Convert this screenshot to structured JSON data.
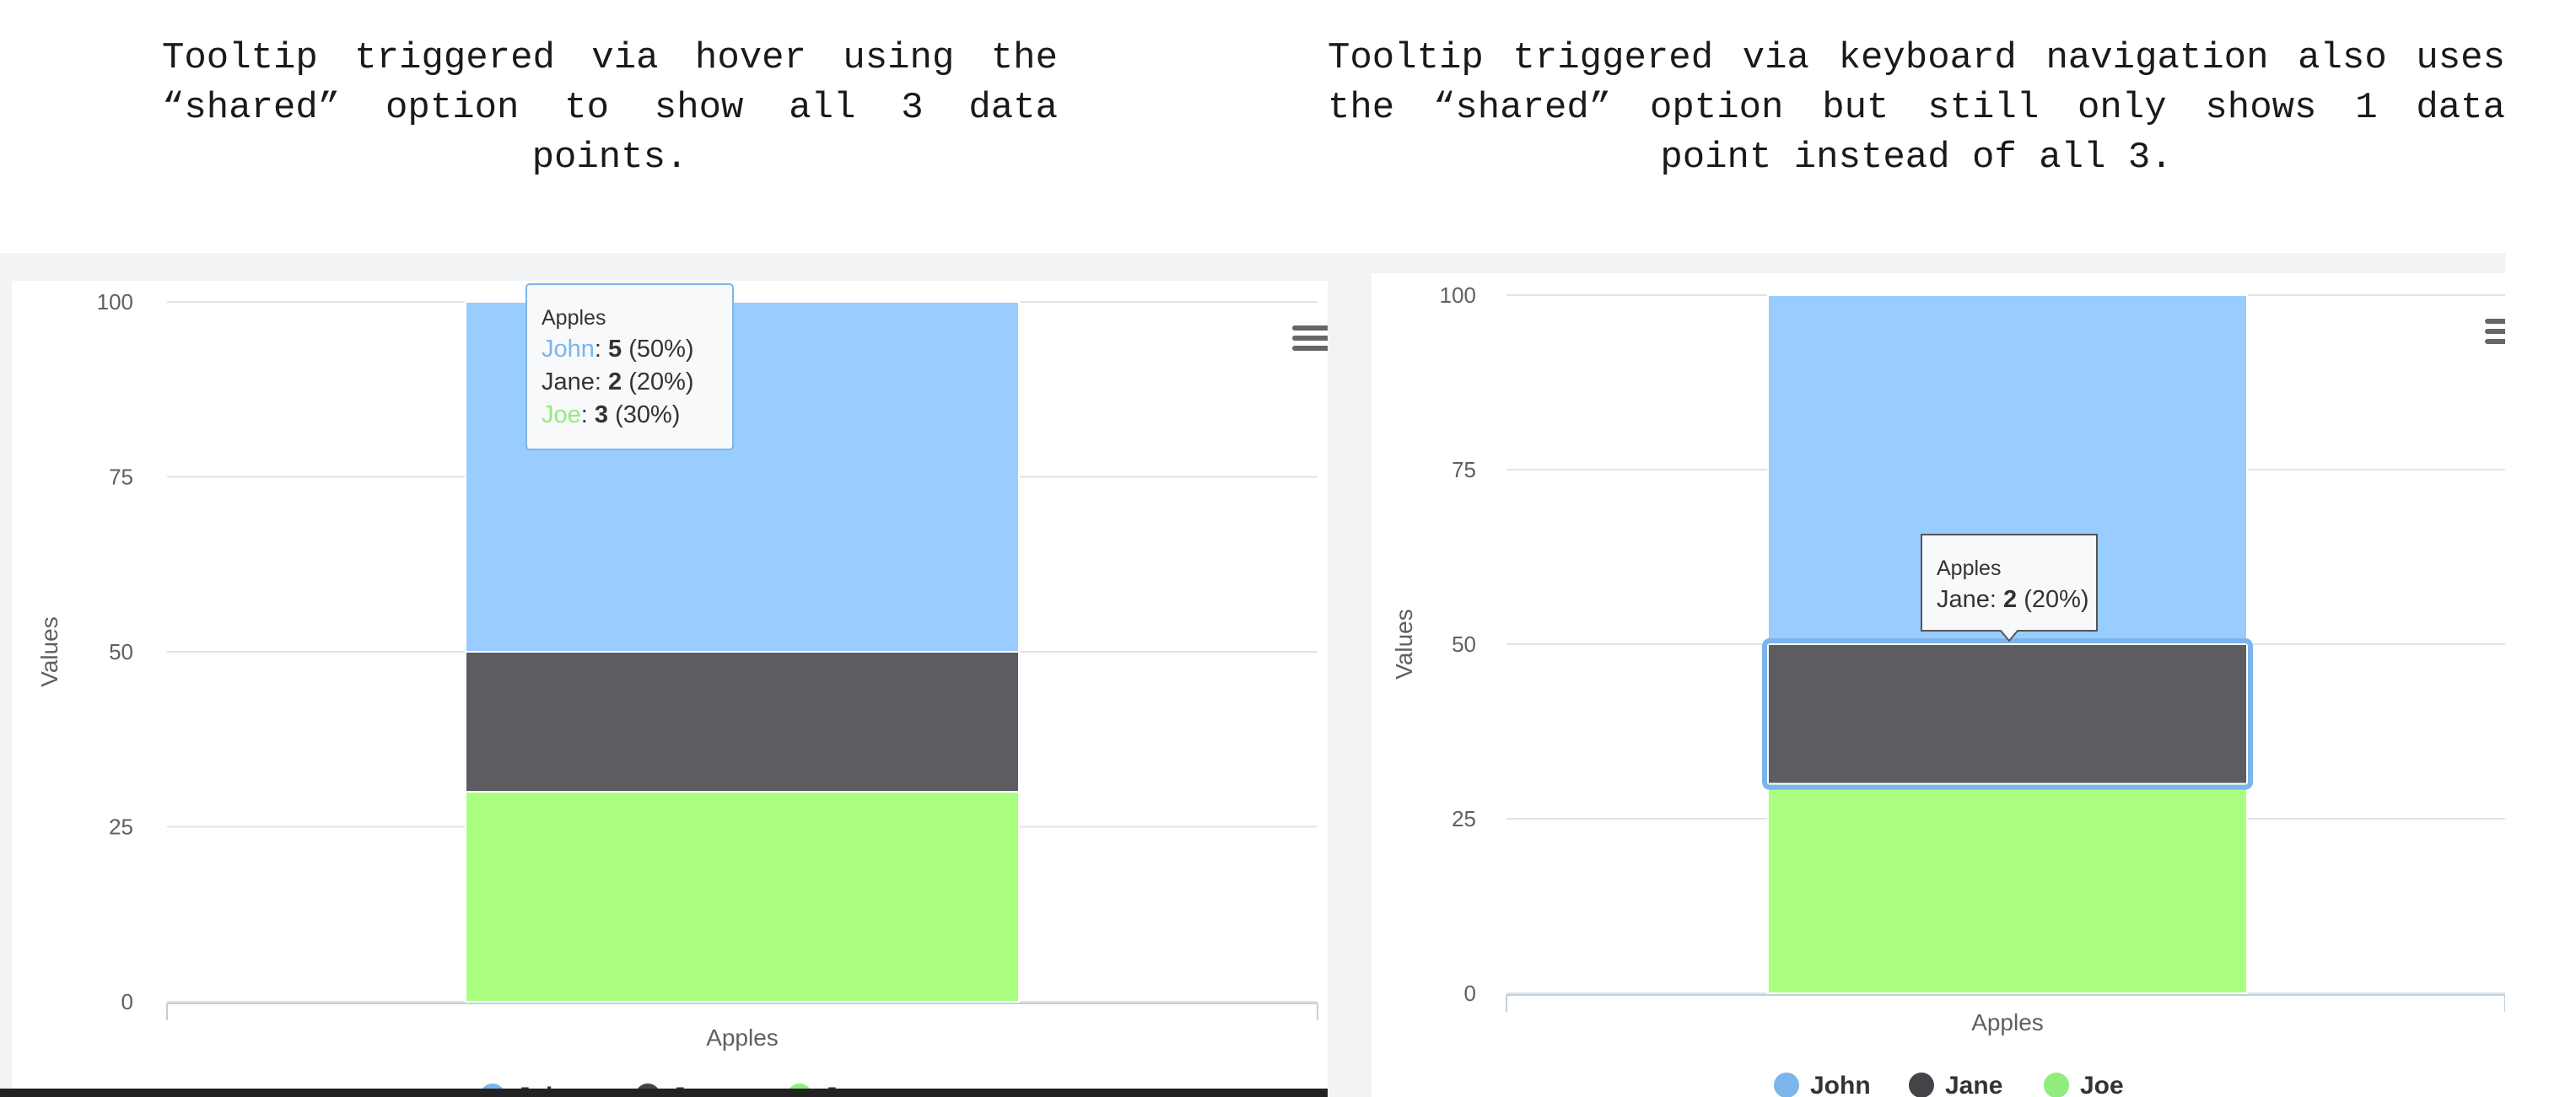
{
  "captions": {
    "left": "Tooltip triggered via hover using the “shared” option to show all 3 data points.",
    "right": "Tooltip triggered via keyboard navigation also uses the “shared” option but still only shows 1 data point instead of all 3."
  },
  "menu_icon": "hamburger-menu-icon",
  "chart_data": [
    {
      "type": "bar",
      "stacking": "percent",
      "categories": [
        "Apples"
      ],
      "ylabel": "Values",
      "ylim": [
        0,
        100
      ],
      "yticks": [
        "0",
        "25",
        "50",
        "75",
        "100"
      ],
      "grid": true,
      "legend_position": "bottom-center",
      "series": [
        {
          "name": "John",
          "values": [
            5
          ],
          "percent": [
            50
          ],
          "color": "#99ccff"
        },
        {
          "name": "Jane",
          "values": [
            2
          ],
          "percent": [
            20
          ],
          "color": "#5c5c61"
        },
        {
          "name": "Joe",
          "values": [
            3
          ],
          "percent": [
            30
          ],
          "color": "#aaff80"
        }
      ],
      "legend_marker_colors": [
        "#7cb5ec",
        "#434348",
        "#90ed7d"
      ],
      "tooltip": {
        "title": "Apples",
        "rows": [
          {
            "name": "John",
            "value": "5",
            "pct": " (50%)",
            "color": "#7cb5ec"
          },
          {
            "name": "Jane",
            "value": "2",
            "pct": " (20%)",
            "color": "#333333"
          },
          {
            "name": "Joe",
            "value": "3",
            "pct": " (30%)",
            "color": "#90ed7d"
          }
        ]
      }
    },
    {
      "type": "bar",
      "stacking": "percent",
      "categories": [
        "Apples"
      ],
      "ylabel": "Values",
      "ylim": [
        0,
        100
      ],
      "yticks": [
        "0",
        "25",
        "50",
        "75",
        "100"
      ],
      "grid": true,
      "legend_position": "bottom-center",
      "series": [
        {
          "name": "John",
          "values": [
            5
          ],
          "percent": [
            50
          ],
          "color": "#99ccff"
        },
        {
          "name": "Jane",
          "values": [
            2
          ],
          "percent": [
            20
          ],
          "color": "#5c5c61"
        },
        {
          "name": "Joe",
          "values": [
            3
          ],
          "percent": [
            30
          ],
          "color": "#aaff80"
        }
      ],
      "legend_marker_colors": [
        "#7cb5ec",
        "#434348",
        "#90ed7d"
      ],
      "focused_series": "Jane",
      "tooltip": {
        "title": "Apples",
        "rows": [
          {
            "name": "Jane",
            "value": "2",
            "pct": " (20%)",
            "color": "#333333"
          }
        ]
      }
    }
  ]
}
